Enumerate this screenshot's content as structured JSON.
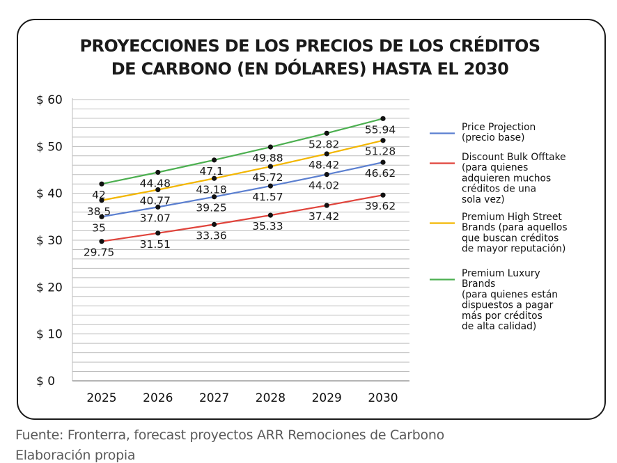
{
  "chart_data": {
    "type": "line",
    "title_lines": [
      "PROYECCIONES DE LOS PRECIOS DE LOS CRÉDITOS",
      "DE CARBONO (EN DÓLARES) HASTA EL 2030"
    ],
    "categories": [
      "2025",
      "2026",
      "2027",
      "2028",
      "2029",
      "2030"
    ],
    "y_ticks": [
      "$ 0",
      "$ 10",
      "$ 20",
      "$ 30",
      "$ 40",
      "$ 50",
      "$ 60"
    ],
    "y_tick_values": [
      0,
      10,
      20,
      30,
      40,
      50,
      60
    ],
    "ylim": [
      0,
      60
    ],
    "grid": true,
    "legend_position": "right",
    "series": [
      {
        "name_lines": [
          "Price Projection",
          "(precio base)"
        ],
        "color": "#5b7fd0",
        "values": [
          35,
          37.07,
          39.25,
          41.57,
          44.02,
          46.62
        ],
        "labels": [
          "35",
          "37.07",
          "39.25",
          "41.57",
          "44.02",
          "46.62"
        ]
      },
      {
        "name_lines": [
          "Discount Bulk Offtake",
          "(para quienes",
          "adquieren muchos",
          "créditos de una",
          "sola vez)"
        ],
        "color": "#e0443c",
        "values": [
          29.75,
          31.51,
          33.36,
          35.33,
          37.42,
          39.62
        ],
        "labels": [
          "29.75",
          "31.51",
          "33.36",
          "35.33",
          "37.42",
          "39.62"
        ]
      },
      {
        "name_lines": [
          "Premium High Street",
          "Brands (para aquellos",
          "que buscan créditos",
          "de mayor reputación)"
        ],
        "color": "#f2b600",
        "values": [
          38.5,
          40.77,
          43.18,
          45.72,
          48.42,
          51.28
        ],
        "labels": [
          "38.5",
          "40.77",
          "43.18",
          "45.72",
          "48.42",
          "51.28"
        ]
      },
      {
        "name_lines": [
          "Premium Luxury",
          "Brands",
          "(para quienes están",
          "dispuestos a pagar",
          "más por créditos",
          "de alta calidad)"
        ],
        "color": "#4caf50",
        "values": [
          42,
          44.48,
          47.1,
          49.88,
          52.82,
          55.94
        ],
        "labels": [
          "42",
          "44.48",
          "47.1",
          "49.88",
          "52.82",
          "55.94"
        ]
      }
    ]
  },
  "footer": {
    "source": "Fuente: Fronterra, forecast proyectos ARR Remociones de Carbono",
    "credit": "Elaboración propia"
  }
}
